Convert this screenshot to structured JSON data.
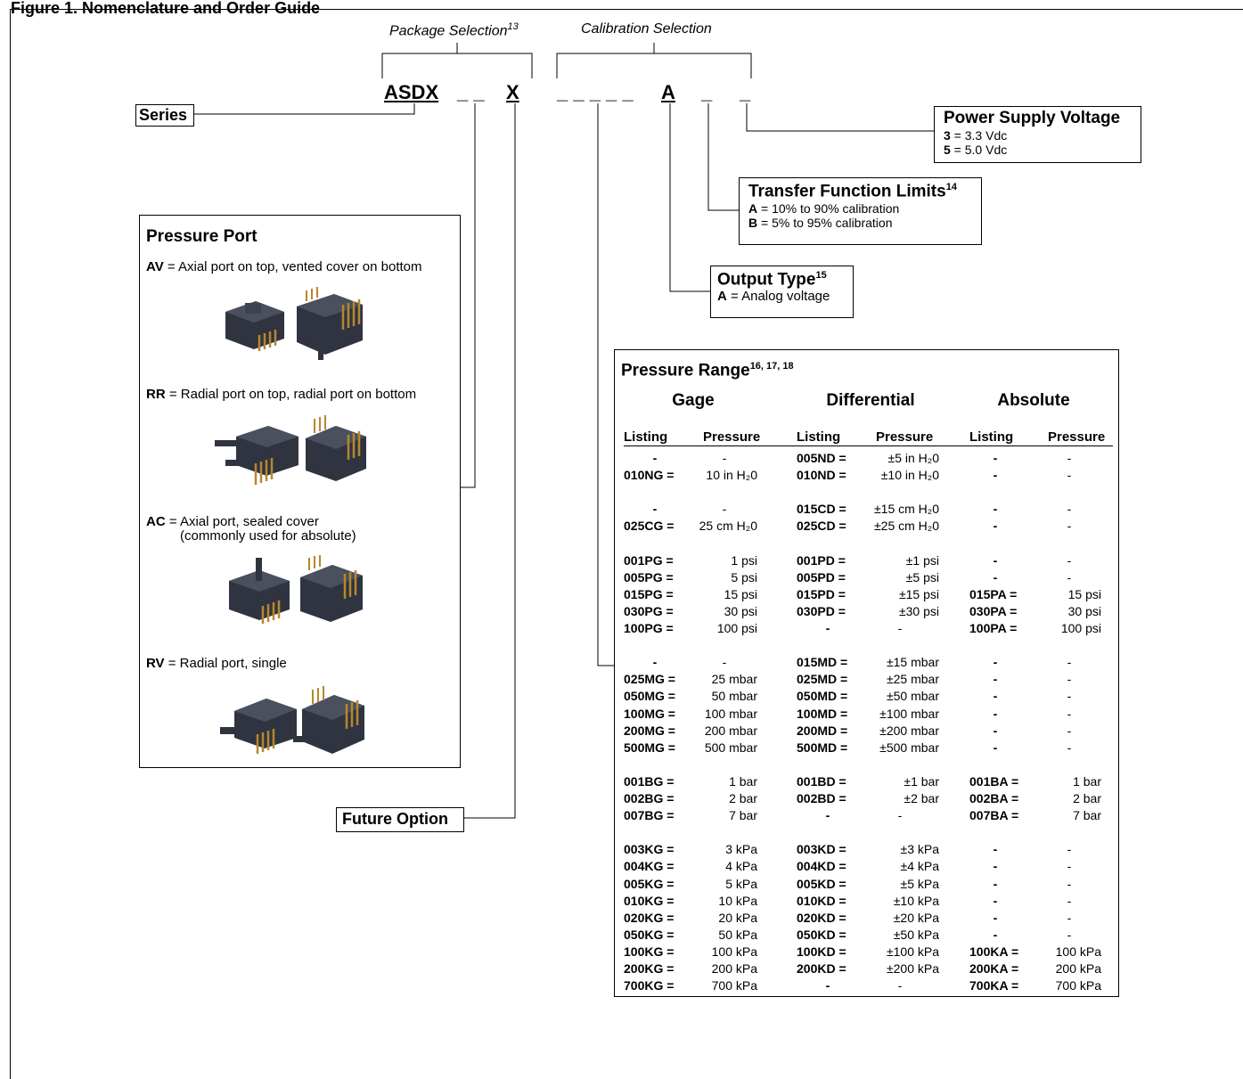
{
  "figure_title": "Figure 1. Nomenclature and Order Guide",
  "package_selection": "Package Selection",
  "package_selection_note": "13",
  "calibration_selection": "Calibration Selection",
  "code": {
    "series": "ASDX",
    "blank2": "_ _",
    "x": "X",
    "blank5": "_ _ _ _ _",
    "a": "A",
    "blank_a": "_",
    "blank_b": "_"
  },
  "series_label": "Series",
  "future_option": "Future Option",
  "power": {
    "title": "Power Supply Voltage",
    "l1_code": "3",
    "l1_text": " = 3.3 Vdc",
    "l2_code": "5",
    "l2_text": " = 5.0 Vdc"
  },
  "transfer": {
    "title": "Transfer Function Limits",
    "note": "14",
    "l1_code": "A",
    "l1_text": " = 10% to 90% calibration",
    "l2_code": "B",
    "l2_text": " = 5% to 95% calibration"
  },
  "output": {
    "title": "Output Type",
    "note": "15",
    "l1_code": "A",
    "l1_text": " = Analog voltage"
  },
  "port": {
    "title": "Pressure Port",
    "items": [
      {
        "code": "AV",
        "text": " = Axial port on top, vented cover on bottom",
        "text2": ""
      },
      {
        "code": "RR",
        "text": " = Radial port on top, radial port on bottom",
        "text2": ""
      },
      {
        "code": "AC",
        "text": " = Axial port, sealed cover",
        "text2": "(commonly used for absolute)"
      },
      {
        "code": "RV",
        "text": " = Radial port, single",
        "text2": ""
      }
    ]
  },
  "range": {
    "title": "Pressure Range",
    "note": "16, 17, 18",
    "groups": [
      "Gage",
      "Differential",
      "Absolute"
    ],
    "col_listing": "Listing",
    "col_pressure": "Pressure",
    "rows": [
      [
        "-",
        "-",
        "005ND =",
        "±5 in H₂0",
        "-",
        "-"
      ],
      [
        "010NG =",
        "10 in H₂0",
        "010ND =",
        "±10 in H₂0",
        "-",
        "-"
      ],
      null,
      [
        "-",
        "-",
        "015CD =",
        "±15 cm H₂0",
        "-",
        "-"
      ],
      [
        "025CG =",
        "25 cm H₂0",
        "025CD =",
        "±25 cm H₂0",
        "-",
        "-"
      ],
      null,
      [
        "001PG =",
        "1 psi",
        "001PD =",
        "±1 psi",
        "-",
        "-"
      ],
      [
        "005PG =",
        "5 psi",
        "005PD =",
        "±5 psi",
        "-",
        "-"
      ],
      [
        "015PG =",
        "15 psi",
        "015PD =",
        "±15 psi",
        "015PA =",
        "15 psi"
      ],
      [
        "030PG =",
        "30 psi",
        "030PD =",
        "±30 psi",
        "030PA =",
        "30 psi"
      ],
      [
        "100PG =",
        "100 psi",
        "-",
        "-",
        "100PA =",
        "100 psi"
      ],
      null,
      [
        "-",
        "-",
        "015MD =",
        "±15 mbar",
        "-",
        "-"
      ],
      [
        "025MG =",
        "25 mbar",
        "025MD =",
        "±25 mbar",
        "-",
        "-"
      ],
      [
        "050MG =",
        "50 mbar",
        "050MD =",
        "±50 mbar",
        "-",
        "-"
      ],
      [
        "100MG =",
        "100 mbar",
        "100MD =",
        "±100 mbar",
        "-",
        "-"
      ],
      [
        "200MG =",
        "200 mbar",
        "200MD =",
        "±200 mbar",
        "-",
        "-"
      ],
      [
        "500MG =",
        "500 mbar",
        "500MD =",
        "±500 mbar",
        "-",
        "-"
      ],
      null,
      [
        "001BG =",
        "1 bar",
        "001BD =",
        "±1 bar",
        "001BA =",
        "1 bar"
      ],
      [
        "002BG =",
        "2 bar",
        "002BD =",
        "±2 bar",
        "002BA =",
        "2 bar"
      ],
      [
        "007BG =",
        "7 bar",
        "-",
        "-",
        "007BA =",
        "7 bar"
      ],
      null,
      [
        "003KG =",
        "3 kPa",
        "003KD =",
        "±3 kPa",
        "-",
        "-"
      ],
      [
        "004KG =",
        "4 kPa",
        "004KD =",
        "±4 kPa",
        "-",
        "-"
      ],
      [
        "005KG =",
        "5 kPa",
        "005KD =",
        "±5 kPa",
        "-",
        "-"
      ],
      [
        "010KG =",
        "10 kPa",
        "010KD =",
        "±10 kPa",
        "-",
        "-"
      ],
      [
        "020KG =",
        "20 kPa",
        "020KD =",
        "±20 kPa",
        "-",
        "-"
      ],
      [
        "050KG =",
        "50 kPa",
        "050KD =",
        "±50 kPa",
        "-",
        "-"
      ],
      [
        "100KG =",
        "100 kPa",
        "100KD =",
        "±100 kPa",
        "100KA =",
        "100 kPa"
      ],
      [
        "200KG =",
        "200 kPa",
        "200KD =",
        "±200 kPa",
        "200KA =",
        "200 kPa"
      ],
      [
        "700KG =",
        "700 kPa",
        "-",
        "-",
        "700KA =",
        "700 kPa"
      ]
    ]
  },
  "colors": {
    "package_body": "#2f3440",
    "package_top": "#4a505e",
    "pin": "#b8862e"
  }
}
